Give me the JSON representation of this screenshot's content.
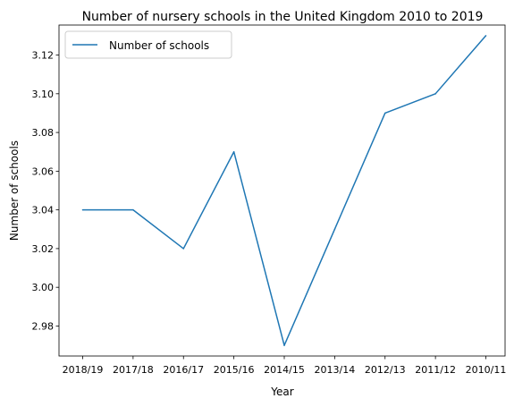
{
  "chart_data": {
    "type": "line",
    "title": "Number of nursery schools in the United Kingdom 2010 to 2019",
    "xlabel": "Year",
    "ylabel": "Number of schools",
    "categories": [
      "2018/19",
      "2017/18",
      "2016/17",
      "2015/16",
      "2014/15",
      "2013/14",
      "2012/13",
      "2011/12",
      "2010/11"
    ],
    "series": [
      {
        "name": "Number of schools",
        "values": [
          3.04,
          3.04,
          3.02,
          3.07,
          2.97,
          3.03,
          3.09,
          3.1,
          3.13
        ]
      }
    ],
    "ylim": [
      2.9645,
      3.1355
    ],
    "yticks": [
      "2.98",
      "3.00",
      "3.02",
      "3.04",
      "3.06",
      "3.08",
      "3.10",
      "3.12"
    ],
    "legend_position": "top-left",
    "grid": false,
    "colors": {
      "series": "#1f77b4",
      "axis": "#000000"
    }
  }
}
